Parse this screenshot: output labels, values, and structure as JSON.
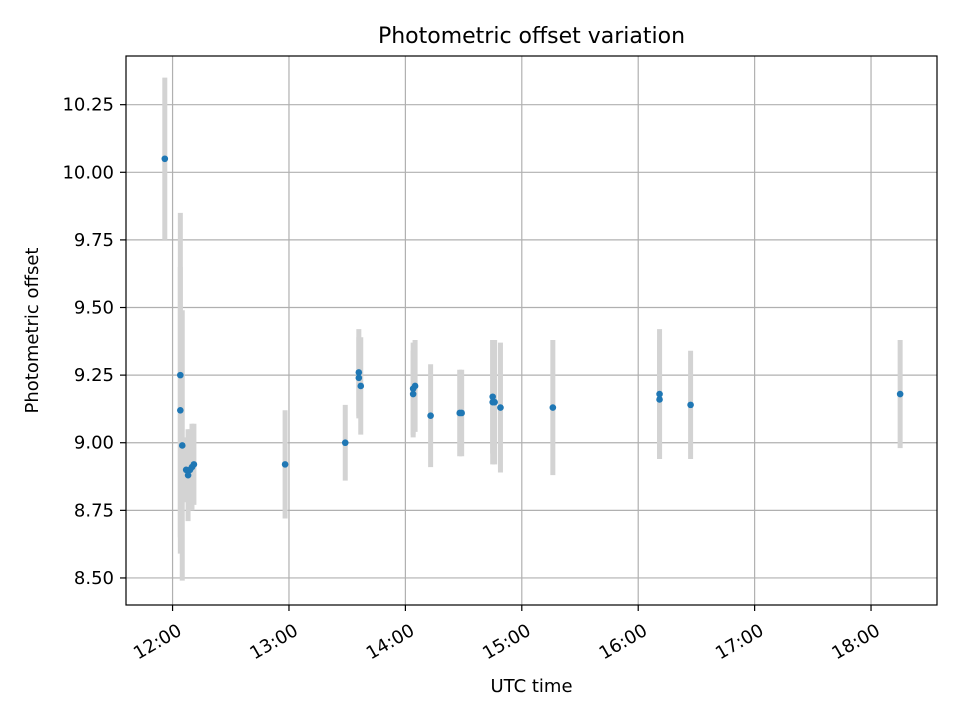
{
  "chart_data": {
    "type": "scatter",
    "title": "Photometric offset variation",
    "xlabel": "UTC time",
    "ylabel": "Photometric offset",
    "x_tick_labels": [
      "12:00",
      "13:00",
      "14:00",
      "15:00",
      "16:00",
      "17:00",
      "18:00"
    ],
    "y_tick_labels": [
      "8.50",
      "8.75",
      "9.00",
      "9.25",
      "9.50",
      "9.75",
      "10.00",
      "10.25"
    ],
    "x_tick_values": [
      "12:00",
      "13:00",
      "14:00",
      "15:00",
      "16:00",
      "17:00",
      "18:00"
    ],
    "y_tick_values": [
      8.5,
      8.75,
      9.0,
      9.25,
      9.5,
      9.75,
      10.0,
      10.25
    ],
    "xlim": [
      "11:36",
      "18:34"
    ],
    "ylim": [
      8.4,
      10.43
    ],
    "grid": true,
    "colors": {
      "point": "#1f77b4",
      "error_bar": "#d3d3d3",
      "grid": "#b0b0b0",
      "axes": "#000000"
    },
    "points": [
      {
        "x": "11:56",
        "y": 10.05,
        "yerr": 0.3
      },
      {
        "x": "12:04",
        "y": 9.25,
        "yerr": 0.6
      },
      {
        "x": "12:04",
        "y": 9.12,
        "yerr": 0.53
      },
      {
        "x": "12:05",
        "y": 8.99,
        "yerr": 0.5
      },
      {
        "x": "12:07",
        "y": 8.9,
        "yerr": 0.12
      },
      {
        "x": "12:08",
        "y": 8.88,
        "yerr": 0.17
      },
      {
        "x": "12:09",
        "y": 8.9,
        "yerr": 0.15
      },
      {
        "x": "12:10",
        "y": 8.91,
        "yerr": 0.16
      },
      {
        "x": "12:11",
        "y": 8.92,
        "yerr": 0.15
      },
      {
        "x": "12:58",
        "y": 8.92,
        "yerr": 0.2
      },
      {
        "x": "13:29",
        "y": 9.0,
        "yerr": 0.14
      },
      {
        "x": "13:36",
        "y": 9.26,
        "yerr": 0.16
      },
      {
        "x": "13:36",
        "y": 9.24,
        "yerr": 0.15
      },
      {
        "x": "13:37",
        "y": 9.21,
        "yerr": 0.18
      },
      {
        "x": "14:04",
        "y": 9.18,
        "yerr": 0.16
      },
      {
        "x": "14:04",
        "y": 9.2,
        "yerr": 0.17
      },
      {
        "x": "14:05",
        "y": 9.21,
        "yerr": 0.17
      },
      {
        "x": "14:13",
        "y": 9.1,
        "yerr": 0.19
      },
      {
        "x": "14:28",
        "y": 9.11,
        "yerr": 0.16
      },
      {
        "x": "14:29",
        "y": 9.11,
        "yerr": 0.16
      },
      {
        "x": "14:45",
        "y": 9.17,
        "yerr": 0.21
      },
      {
        "x": "14:45",
        "y": 9.15,
        "yerr": 0.23
      },
      {
        "x": "14:46",
        "y": 9.15,
        "yerr": 0.23
      },
      {
        "x": "14:49",
        "y": 9.13,
        "yerr": 0.24
      },
      {
        "x": "15:16",
        "y": 9.13,
        "yerr": 0.25
      },
      {
        "x": "16:11",
        "y": 9.18,
        "yerr": 0.24
      },
      {
        "x": "16:11",
        "y": 9.16,
        "yerr": 0.22
      },
      {
        "x": "16:27",
        "y": 9.14,
        "yerr": 0.2
      },
      {
        "x": "18:15",
        "y": 9.18,
        "yerr": 0.2
      }
    ]
  }
}
